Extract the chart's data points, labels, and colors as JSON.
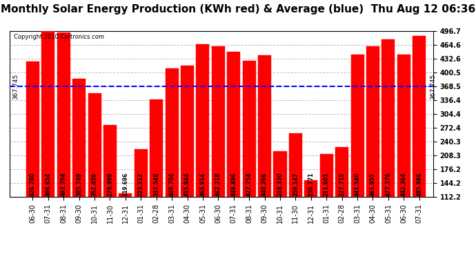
{
  "title": "Monthly Solar Energy Production (KWh red) & Average (blue)  Thu Aug 12 06:36",
  "copyright": "Copyright 2010 Cartronics.com",
  "categories": [
    "06-30",
    "07-31",
    "08-31",
    "09-30",
    "10-31",
    "11-30",
    "12-31",
    "01-31",
    "02-28",
    "03-31",
    "04-30",
    "05-31",
    "06-30",
    "07-31",
    "08-31",
    "09-30",
    "10-31",
    "11-30",
    "12-31",
    "01-31",
    "02-28",
    "03-31",
    "04-30",
    "05-31",
    "06-30",
    "07-31"
  ],
  "values": [
    426.78,
    496.654,
    492.704,
    385.749,
    352.459,
    278.999,
    119.696,
    223.512,
    337.548,
    409.704,
    415.844,
    465.914,
    462.218,
    448.896,
    427.754,
    440.266,
    218.33,
    259.147,
    150.771,
    211.601,
    227.715,
    441.54,
    461.955,
    477.376,
    442.364,
    485.886
  ],
  "average": 367.745,
  "bar_color": "#FF0000",
  "avg_line_color": "#0000FF",
  "background_color": "#FFFFFF",
  "grid_color": "#C0C0C0",
  "ylim_min": 112.2,
  "ylim_max": 496.7,
  "yticks": [
    112.2,
    144.2,
    176.2,
    208.3,
    240.3,
    272.4,
    304.4,
    336.4,
    368.5,
    400.5,
    432.6,
    464.6,
    496.7
  ],
  "title_fontsize": 11,
  "tick_fontsize": 7,
  "copyright_fontsize": 6,
  "avg_label": "367.745",
  "bar_width": 0.85
}
